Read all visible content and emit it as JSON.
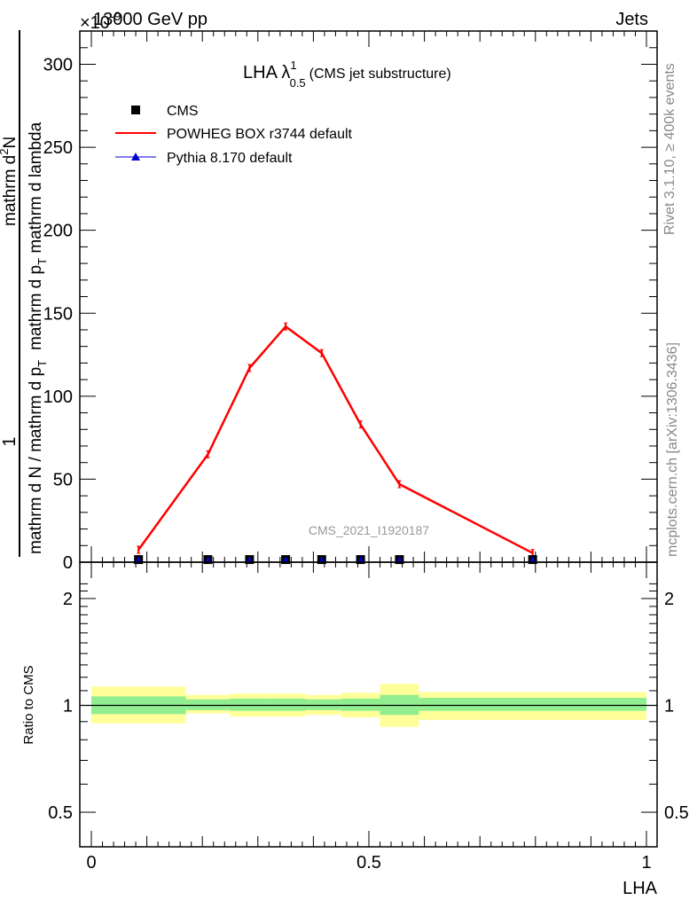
{
  "header": {
    "energy": "13000 GeV pp",
    "process": "Jets",
    "exponent": "×10",
    "exponent_power": "-9"
  },
  "side_text": {
    "rivet": "Rivet 3.1.10, ≥ 400k events",
    "source": "mcplots.cern.ch [arXiv:1306.3436]"
  },
  "chart_data": [
    {
      "type": "line",
      "title_main": "LHA λ",
      "title_sup": "1",
      "title_sub": "0.5",
      "title_note": "(CMS jet substructure)",
      "watermark": "CMS_2021_I1920187",
      "ylabel": "1 / mathrm d N / mathrm d p_T  ·  mathrm d²N / mathrm d p_T mathrm d lambda",
      "ylabel_parts": {
        "num_left": "1",
        "den_left": "mathrm d N / mathrm d p",
        "den_left_sub": "T",
        "num_right": "mathrm d",
        "num_right_sup": "2",
        "num_right_tail": "N",
        "den_right": "mathrm d p",
        "den_right_sub": "T",
        "den_right_tail": " mathrm d lambda"
      },
      "xlim": [
        0,
        1
      ],
      "ylim": [
        0,
        320
      ],
      "yticks": [
        0,
        50,
        100,
        150,
        200,
        250,
        300
      ],
      "ytick_labels": [
        "0",
        "50",
        "100",
        "150",
        "200",
        "250",
        "300"
      ],
      "legend": [
        "CMS",
        "POWHEG BOX r3744 default",
        "Pythia 8.170 default"
      ],
      "legend_placement": "top-left",
      "series": [
        {
          "name": "CMS",
          "style": "markers",
          "color": "#000000",
          "x": [
            0.085,
            0.21,
            0.285,
            0.35,
            0.415,
            0.485,
            0.555,
            0.795
          ],
          "y": [
            0.5,
            0.5,
            0.5,
            0.5,
            0.5,
            0.5,
            0.5,
            0.5
          ]
        },
        {
          "name": "POWHEG BOX r3744 default",
          "style": "line",
          "color": "#ff0000",
          "x": [
            0.085,
            0.21,
            0.285,
            0.35,
            0.415,
            0.485,
            0.555,
            0.795
          ],
          "y": [
            7.5,
            65,
            117,
            142,
            126,
            83,
            47,
            5.5
          ]
        },
        {
          "name": "Pythia 8.170 default",
          "style": "markers",
          "color": "#0000cc",
          "x": [
            0.085,
            0.21,
            0.285,
            0.35,
            0.415,
            0.485,
            0.555,
            0.795
          ],
          "y": [
            0.5,
            0.5,
            0.5,
            0.5,
            0.5,
            0.5,
            0.5,
            0.5
          ]
        }
      ]
    },
    {
      "type": "area",
      "ylabel": "Ratio to CMS",
      "xlabel": "LHA",
      "xlim": [
        0,
        1
      ],
      "ylim": [
        0.4,
        2.4
      ],
      "log_y": true,
      "yticks": [
        0.5,
        1,
        2
      ],
      "ytick_labels": [
        "0.5",
        "1",
        "2"
      ],
      "xticks": [
        0,
        0.5,
        1
      ],
      "xtick_labels": [
        "0",
        "0.5",
        "1"
      ],
      "reference": 1,
      "bins": [
        {
          "lo": 0.0,
          "hi": 0.17,
          "stat": [
            0.945,
            1.06
          ],
          "total": [
            0.89,
            1.13
          ]
        },
        {
          "lo": 0.17,
          "hi": 0.25,
          "stat": [
            0.97,
            1.04
          ],
          "total": [
            0.95,
            1.07
          ]
        },
        {
          "lo": 0.25,
          "hi": 0.32,
          "stat": [
            0.965,
            1.045
          ],
          "total": [
            0.93,
            1.08
          ]
        },
        {
          "lo": 0.32,
          "hi": 0.385,
          "stat": [
            0.965,
            1.045
          ],
          "total": [
            0.93,
            1.08
          ]
        },
        {
          "lo": 0.385,
          "hi": 0.45,
          "stat": [
            0.97,
            1.04
          ],
          "total": [
            0.94,
            1.07
          ]
        },
        {
          "lo": 0.45,
          "hi": 0.52,
          "stat": [
            0.965,
            1.045
          ],
          "total": [
            0.925,
            1.085
          ]
        },
        {
          "lo": 0.52,
          "hi": 0.59,
          "stat": [
            0.94,
            1.07
          ],
          "total": [
            0.87,
            1.15
          ]
        },
        {
          "lo": 0.59,
          "hi": 1.0,
          "stat": [
            0.965,
            1.05
          ],
          "total": [
            0.91,
            1.09
          ]
        }
      ],
      "colors": {
        "stat": "#90ee90",
        "total": "#ffff99",
        "line": "#000000"
      }
    }
  ]
}
